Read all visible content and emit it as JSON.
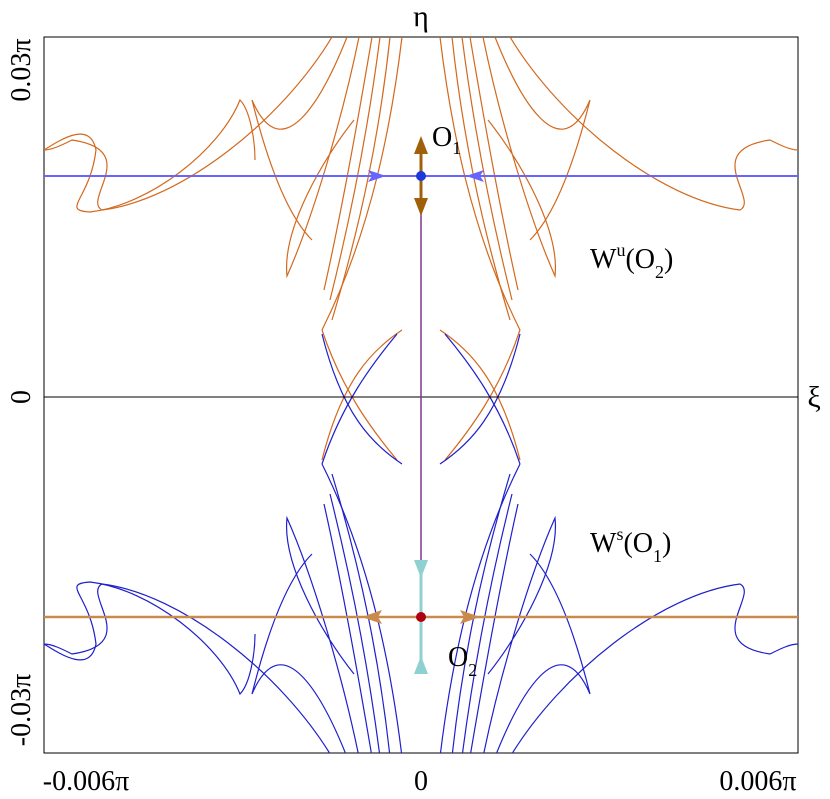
{
  "axes": {
    "x_label": "ξ",
    "y_label": "η",
    "x_ticks": [
      "-0.006π",
      "0",
      "0.006π"
    ],
    "y_ticks": [
      "0.03π",
      "0",
      "-0.03π"
    ]
  },
  "points": {
    "o1": {
      "label": "O",
      "sub": "1"
    },
    "o2": {
      "label": "O",
      "sub": "2"
    }
  },
  "manifolds": {
    "wu": {
      "label": "W",
      "sup": "u",
      "arg_open": "(O",
      "arg_sub": "2",
      "arg_close": ")"
    },
    "ws": {
      "label": "W",
      "sup": "s",
      "arg_open": "(O",
      "arg_sub": "1",
      "arg_close": ")"
    }
  },
  "colors": {
    "unstable_manifold": "#d2691e",
    "stable_manifold": "#1f1fcc",
    "blue_line": "#6666ff",
    "orange_line": "#c98a4b",
    "o1_point": "#1a3adb",
    "o2_point": "#b00010",
    "o1_arrows": "#a0600a",
    "o2_arrows": "#8fd0d0",
    "vertical_line": "#7a3a8a",
    "axis_line": "#000000"
  }
}
